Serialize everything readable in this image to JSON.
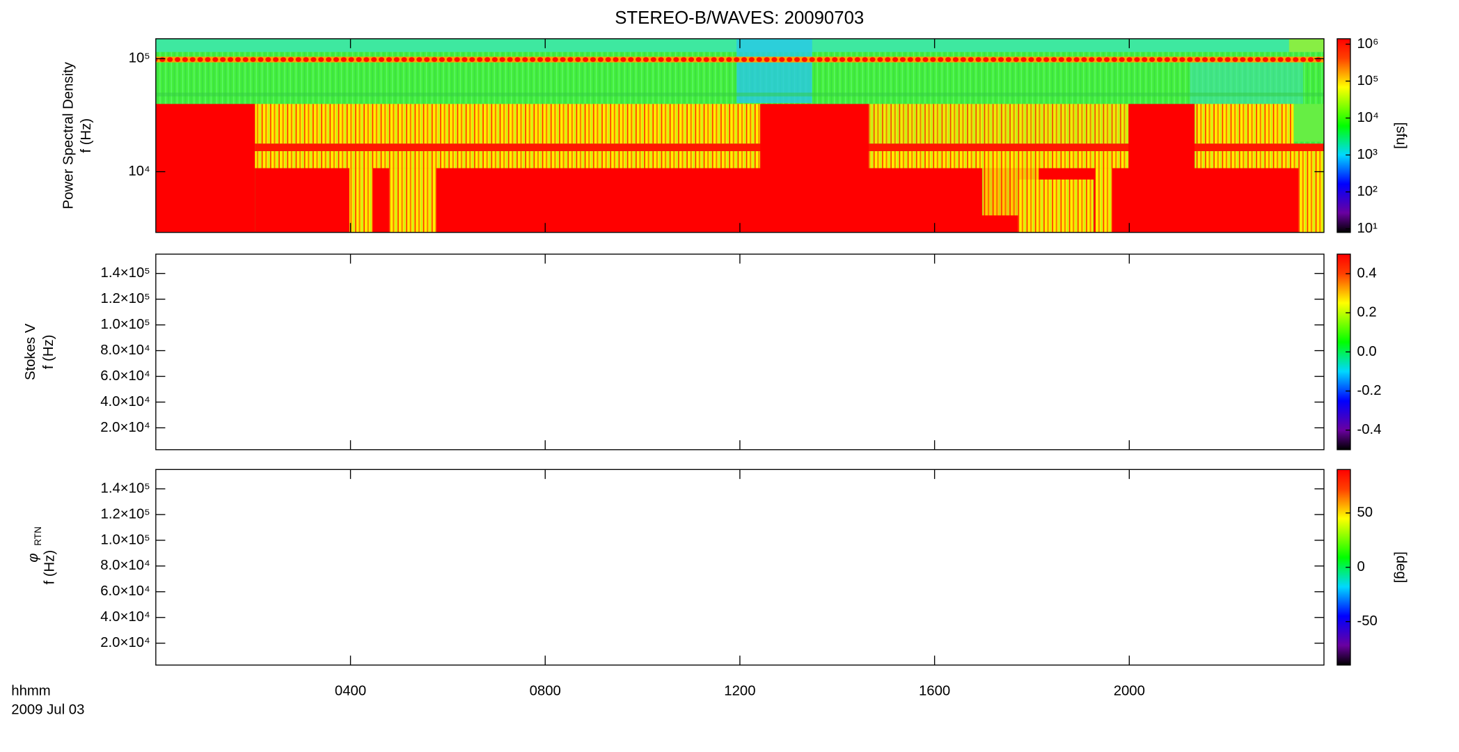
{
  "chart_data": [
    {
      "type": "heatmap",
      "title": "STEREO-B/WAVES: 20090703",
      "y_label": "Power Spectral Density",
      "y_unit_label": "f (Hz)",
      "log_y": true,
      "ylim": [
        2900,
        150000
      ],
      "yticks": [
        {
          "value": 10000,
          "label": "10⁴"
        },
        {
          "value": 100000,
          "label": "10⁵"
        }
      ],
      "colorbar": {
        "label": "[sfu]",
        "log": true,
        "lim": [
          8,
          1400000
        ],
        "ticks": [
          {
            "value": 10,
            "label": "10¹"
          },
          {
            "value": 100,
            "label": "10²"
          },
          {
            "value": 1000,
            "label": "10³"
          },
          {
            "value": 10000,
            "label": "10⁴"
          },
          {
            "value": 100000,
            "label": "10⁵"
          },
          {
            "value": 1000000,
            "label": "10⁶"
          }
        ]
      }
    },
    {
      "type": "heatmap",
      "y_label": "Stokes V",
      "y_unit_label": "f (Hz)",
      "log_y": false,
      "ylim": [
        3000,
        155000
      ],
      "yticks": [
        {
          "value": 20000,
          "label": "2.0×10⁴"
        },
        {
          "value": 40000,
          "label": "4.0×10⁴"
        },
        {
          "value": 60000,
          "label": "6.0×10⁴"
        },
        {
          "value": 80000,
          "label": "8.0×10⁴"
        },
        {
          "value": 100000,
          "label": "1.0×10⁵"
        },
        {
          "value": 120000,
          "label": "1.2×10⁵"
        },
        {
          "value": 140000,
          "label": "1.4×10⁵"
        }
      ],
      "colorbar": {
        "log": false,
        "lim": [
          -0.5,
          0.5
        ],
        "ticks": [
          -0.4,
          -0.2,
          {
            "value": 0,
            "label": "0.0"
          },
          0.2,
          0.4
        ]
      }
    },
    {
      "type": "heatmap",
      "y_label": "φ",
      "y_label_sub": "RTN",
      "y_unit_label": "f (Hz)",
      "log_y": false,
      "ylim": [
        3000,
        155000
      ],
      "yticks": [
        {
          "value": 20000,
          "label": "2.0×10⁴"
        },
        {
          "value": 40000,
          "label": "4.0×10⁴"
        },
        {
          "value": 60000,
          "label": "6.0×10⁴"
        },
        {
          "value": 80000,
          "label": "8.0×10⁴"
        },
        {
          "value": 100000,
          "label": "1.0×10⁵"
        },
        {
          "value": 120000,
          "label": "1.2×10⁵"
        },
        {
          "value": 140000,
          "label": "1.4×10⁵"
        }
      ],
      "colorbar": {
        "label": "[deg]",
        "log": false,
        "lim": [
          -90,
          90
        ],
        "ticks": [
          -50,
          0,
          50
        ]
      },
      "x_label": "hhmm",
      "date_label": "2009 Jul 03",
      "xlim": [
        0,
        24
      ],
      "xticks": [
        {
          "value": 4,
          "label": "0400"
        },
        {
          "value": 8,
          "label": "0800"
        },
        {
          "value": 12,
          "label": "1200"
        },
        {
          "value": 16,
          "label": "1600"
        },
        {
          "value": 20,
          "label": "2000"
        }
      ]
    }
  ]
}
